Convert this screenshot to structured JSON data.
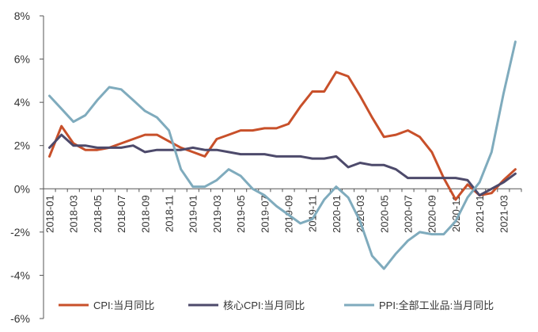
{
  "chart_data": {
    "type": "line",
    "title": "",
    "xlabel": "",
    "ylabel": "",
    "ylim": [
      -6,
      8
    ],
    "y_unit": "%",
    "grid": false,
    "legend_position": "bottom",
    "yticks": [
      -6,
      -4,
      -2,
      0,
      2,
      4,
      6,
      8
    ],
    "ytick_labels": [
      "-6%",
      "-4%",
      "-2%",
      "0%",
      "2%",
      "4%",
      "6%",
      "8%"
    ],
    "x": [
      "2018-01",
      "2018-02",
      "2018-03",
      "2018-04",
      "2018-05",
      "2018-06",
      "2018-07",
      "2018-08",
      "2018-09",
      "2018-10",
      "2018-11",
      "2018-12",
      "2019-01",
      "2019-02",
      "2019-03",
      "2019-04",
      "2019-05",
      "2019-06",
      "2019-07",
      "2019-08",
      "2019-09",
      "2019-10",
      "2019-11",
      "2019-12",
      "2020-01",
      "2020-02",
      "2020-03",
      "2020-04",
      "2020-05",
      "2020-06",
      "2020-07",
      "2020-08",
      "2020-09",
      "2020-10",
      "2020-11",
      "2020-12",
      "2021-01",
      "2021-02",
      "2021-03",
      "2021-04"
    ],
    "xtick_labels": [
      "2018-01",
      "2018-03",
      "2018-05",
      "2018-07",
      "2018-09",
      "2018-11",
      "2019-01",
      "2019-03",
      "2019-05",
      "2019-07",
      "2019-09",
      "2019-11",
      "2020-01",
      "2020-03",
      "2020-05",
      "2020-07",
      "2020-09",
      "2020-11",
      "2021-01",
      "2021-03"
    ],
    "series": [
      {
        "name": "CPI:当月同比",
        "color": "#c8502a",
        "values": [
          1.5,
          2.9,
          2.1,
          1.8,
          1.8,
          1.9,
          2.1,
          2.3,
          2.5,
          2.5,
          2.2,
          1.9,
          1.7,
          1.5,
          2.3,
          2.5,
          2.7,
          2.7,
          2.8,
          2.8,
          3.0,
          3.8,
          4.5,
          4.5,
          5.4,
          5.2,
          4.3,
          3.3,
          2.4,
          2.5,
          2.7,
          2.4,
          1.7,
          0.5,
          -0.5,
          0.2,
          -0.3,
          -0.2,
          0.4,
          0.9
        ]
      },
      {
        "name": "核心CPI:当月同比",
        "color": "#4d4a6b",
        "values": [
          1.9,
          2.5,
          2.0,
          2.0,
          1.9,
          1.9,
          1.9,
          2.0,
          1.7,
          1.8,
          1.8,
          1.8,
          1.9,
          1.8,
          1.8,
          1.7,
          1.6,
          1.6,
          1.6,
          1.5,
          1.5,
          1.5,
          1.4,
          1.4,
          1.5,
          1.0,
          1.2,
          1.1,
          1.1,
          0.9,
          0.5,
          0.5,
          0.5,
          0.5,
          0.5,
          0.4,
          -0.3,
          0.0,
          0.3,
          0.7
        ]
      },
      {
        "name": "PPI:全部工业品:当月同比",
        "color": "#7fabbd",
        "values": [
          4.3,
          3.7,
          3.1,
          3.4,
          4.1,
          4.7,
          4.6,
          4.1,
          3.6,
          3.3,
          2.7,
          0.9,
          0.1,
          0.1,
          0.4,
          0.9,
          0.6,
          0.0,
          -0.3,
          -0.8,
          -1.2,
          -1.6,
          -1.4,
          -0.5,
          0.1,
          -0.4,
          -1.5,
          -3.1,
          -3.7,
          -3.0,
          -2.4,
          -2.0,
          -2.1,
          -2.1,
          -1.5,
          -0.4,
          0.3,
          1.7,
          4.4,
          6.8
        ]
      }
    ]
  }
}
